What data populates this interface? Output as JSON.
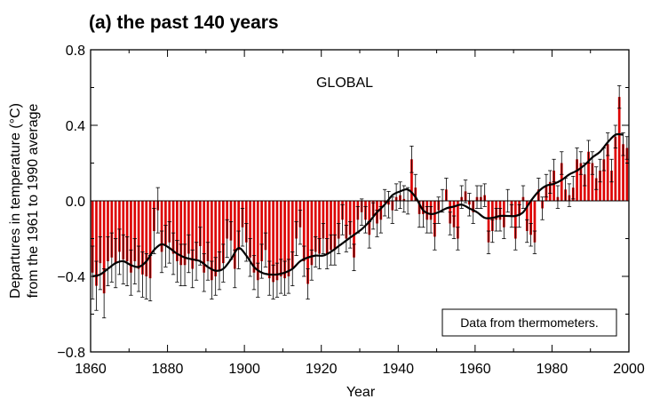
{
  "chart_data": {
    "type": "bar",
    "title": "(a) the past 140 years",
    "annotation": "GLOBAL",
    "note": "Data from thermometers.",
    "xlabel": "Year",
    "ylabel_line1": "Departures in temperature (°C)",
    "ylabel_line2": "from the 1961 to 1990 average",
    "xlim": [
      1860,
      2000
    ],
    "ylim": [
      -0.8,
      0.8
    ],
    "xticks": [
      1860,
      1880,
      1900,
      1920,
      1940,
      1960,
      1980,
      2000
    ],
    "xtick_labels": [
      "1860",
      "1880",
      "1900",
      "1920",
      "1940",
      "1960",
      "1980",
      "2000"
    ],
    "yticks": [
      0.8,
      0.4,
      0.0,
      -0.4,
      -0.8
    ],
    "ytick_labels": [
      "0.8",
      "0.4",
      "0.0",
      "−0.4",
      "−0.8"
    ],
    "colors": {
      "bars": "#dd0000",
      "smooth": "#000000",
      "error_bars": "#000000"
    },
    "years": [
      1861,
      1862,
      1863,
      1864,
      1865,
      1866,
      1867,
      1868,
      1869,
      1870,
      1871,
      1872,
      1873,
      1874,
      1875,
      1876,
      1877,
      1878,
      1879,
      1880,
      1881,
      1882,
      1883,
      1884,
      1885,
      1886,
      1887,
      1888,
      1889,
      1890,
      1891,
      1892,
      1893,
      1894,
      1895,
      1896,
      1897,
      1898,
      1899,
      1900,
      1901,
      1902,
      1903,
      1904,
      1905,
      1906,
      1907,
      1908,
      1909,
      1910,
      1911,
      1912,
      1913,
      1914,
      1915,
      1916,
      1917,
      1918,
      1919,
      1920,
      1921,
      1922,
      1923,
      1924,
      1925,
      1926,
      1927,
      1928,
      1929,
      1930,
      1931,
      1932,
      1933,
      1934,
      1935,
      1936,
      1937,
      1938,
      1939,
      1940,
      1941,
      1942,
      1943,
      1944,
      1945,
      1946,
      1947,
      1948,
      1949,
      1950,
      1951,
      1952,
      1953,
      1954,
      1955,
      1956,
      1957,
      1958,
      1959,
      1960,
      1961,
      1962,
      1963,
      1964,
      1965,
      1966,
      1967,
      1968,
      1969,
      1970,
      1971,
      1972,
      1973,
      1974,
      1975,
      1976,
      1977,
      1978,
      1979,
      1980,
      1981,
      1982,
      1983,
      1984,
      1985,
      1986,
      1987,
      1988,
      1989,
      1990,
      1991,
      1992,
      1993,
      1994,
      1995,
      1996,
      1997,
      1998,
      1999,
      2000
    ],
    "anomalies": [
      -0.38,
      -0.45,
      -0.33,
      -0.49,
      -0.32,
      -0.3,
      -0.33,
      -0.27,
      -0.31,
      -0.32,
      -0.38,
      -0.32,
      -0.36,
      -0.39,
      -0.4,
      -0.41,
      -0.16,
      -0.05,
      -0.27,
      -0.24,
      -0.22,
      -0.28,
      -0.32,
      -0.34,
      -0.34,
      -0.28,
      -0.36,
      -0.32,
      -0.24,
      -0.38,
      -0.32,
      -0.42,
      -0.4,
      -0.37,
      -0.33,
      -0.2,
      -0.21,
      -0.36,
      -0.26,
      -0.14,
      -0.22,
      -0.3,
      -0.38,
      -0.42,
      -0.32,
      -0.26,
      -0.41,
      -0.43,
      -0.42,
      -0.4,
      -0.41,
      -0.4,
      -0.36,
      -0.2,
      -0.14,
      -0.32,
      -0.44,
      -0.34,
      -0.27,
      -0.28,
      -0.2,
      -0.28,
      -0.26,
      -0.26,
      -0.2,
      -0.1,
      -0.2,
      -0.18,
      -0.3,
      -0.1,
      -0.06,
      -0.1,
      -0.18,
      -0.08,
      -0.12,
      -0.1,
      -0.01,
      -0.02,
      -0.05,
      0.02,
      0.03,
      0.01,
      0.0,
      0.22,
      0.07,
      -0.07,
      -0.07,
      -0.1,
      -0.1,
      -0.19,
      -0.05,
      0.0,
      0.06,
      -0.12,
      -0.14,
      -0.2,
      0.02,
      0.05,
      -0.02,
      -0.06,
      0.02,
      0.02,
      0.03,
      -0.22,
      -0.16,
      -0.1,
      -0.1,
      -0.14,
      0.0,
      -0.08,
      -0.2,
      -0.08,
      0.02,
      -0.16,
      -0.18,
      -0.22,
      0.06,
      -0.04,
      0.08,
      0.1,
      0.16,
      0.02,
      0.2,
      0.06,
      0.03,
      0.07,
      0.22,
      0.2,
      0.14,
      0.26,
      0.2,
      0.12,
      0.16,
      0.22,
      0.3,
      0.16,
      0.34,
      0.55,
      0.3,
      0.28
    ],
    "errors": [
      0.14,
      0.13,
      0.14,
      0.13,
      0.13,
      0.13,
      0.13,
      0.12,
      0.13,
      0.13,
      0.12,
      0.12,
      0.12,
      0.12,
      0.12,
      0.12,
      0.12,
      0.12,
      0.11,
      0.11,
      0.11,
      0.11,
      0.11,
      0.11,
      0.11,
      0.1,
      0.1,
      0.1,
      0.1,
      0.1,
      0.1,
      0.1,
      0.1,
      0.1,
      0.1,
      0.1,
      0.1,
      0.1,
      0.1,
      0.1,
      0.1,
      0.1,
      0.09,
      0.09,
      0.09,
      0.09,
      0.09,
      0.09,
      0.09,
      0.09,
      0.09,
      0.09,
      0.09,
      0.09,
      0.09,
      0.08,
      0.08,
      0.08,
      0.08,
      0.08,
      0.08,
      0.08,
      0.08,
      0.08,
      0.08,
      0.08,
      0.07,
      0.07,
      0.07,
      0.07,
      0.07,
      0.07,
      0.07,
      0.07,
      0.07,
      0.07,
      0.07,
      0.07,
      0.07,
      0.07,
      0.07,
      0.07,
      0.07,
      0.07,
      0.07,
      0.07,
      0.07,
      0.07,
      0.07,
      0.07,
      0.07,
      0.06,
      0.06,
      0.06,
      0.06,
      0.06,
      0.06,
      0.06,
      0.06,
      0.06,
      0.06,
      0.06,
      0.06,
      0.06,
      0.06,
      0.06,
      0.06,
      0.06,
      0.06,
      0.06,
      0.06,
      0.06,
      0.06,
      0.06,
      0.06,
      0.06,
      0.06,
      0.06,
      0.06,
      0.06,
      0.06,
      0.06,
      0.06,
      0.06,
      0.06,
      0.06,
      0.06,
      0.06,
      0.06,
      0.06,
      0.06,
      0.06,
      0.06,
      0.06,
      0.06,
      0.06,
      0.06,
      0.06,
      0.06,
      0.06
    ],
    "smooth_x": [
      1861,
      1863,
      1865,
      1867,
      1869,
      1871,
      1873,
      1875,
      1877,
      1879,
      1881,
      1883,
      1885,
      1887,
      1889,
      1891,
      1893,
      1895,
      1897,
      1899,
      1901,
      1903,
      1905,
      1907,
      1909,
      1911,
      1913,
      1915,
      1917,
      1919,
      1921,
      1923,
      1925,
      1927,
      1929,
      1931,
      1933,
      1935,
      1937,
      1939,
      1941,
      1943,
      1945,
      1947,
      1949,
      1951,
      1953,
      1955,
      1957,
      1959,
      1961,
      1963,
      1965,
      1967,
      1969,
      1971,
      1973,
      1975,
      1977,
      1979,
      1981,
      1983,
      1985,
      1987,
      1989,
      1991,
      1993,
      1995,
      1997,
      1999
    ],
    "smooth_y": [
      -0.4,
      -0.39,
      -0.36,
      -0.33,
      -0.32,
      -0.34,
      -0.35,
      -0.32,
      -0.26,
      -0.23,
      -0.25,
      -0.28,
      -0.3,
      -0.31,
      -0.32,
      -0.35,
      -0.37,
      -0.36,
      -0.31,
      -0.25,
      -0.29,
      -0.35,
      -0.38,
      -0.39,
      -0.39,
      -0.38,
      -0.36,
      -0.32,
      -0.3,
      -0.29,
      -0.29,
      -0.27,
      -0.24,
      -0.21,
      -0.18,
      -0.15,
      -0.11,
      -0.06,
      -0.02,
      0.03,
      0.05,
      0.06,
      0.02,
      -0.05,
      -0.07,
      -0.06,
      -0.04,
      -0.03,
      -0.02,
      -0.04,
      -0.06,
      -0.09,
      -0.09,
      -0.08,
      -0.08,
      -0.08,
      -0.06,
      0.0,
      0.05,
      0.08,
      0.09,
      0.11,
      0.14,
      0.16,
      0.19,
      0.23,
      0.26,
      0.31,
      0.35,
      0.35
    ]
  }
}
